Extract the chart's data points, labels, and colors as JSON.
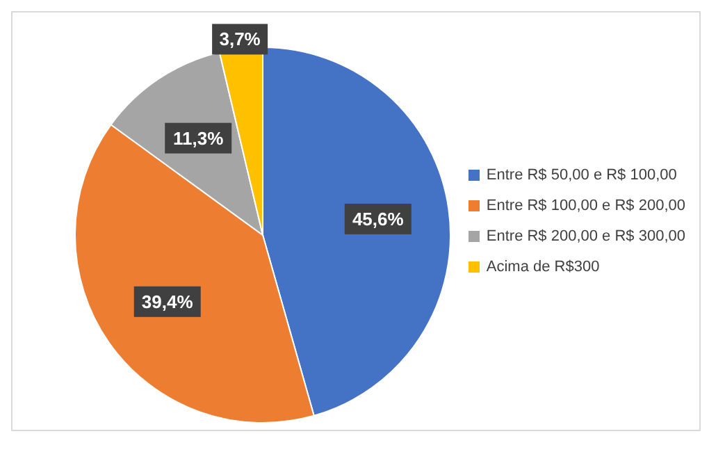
{
  "chart_data": {
    "type": "pie",
    "categories": [
      "Entre R$ 50,00 e R$ 100,00",
      "Entre R$ 100,00 e R$ 200,00",
      "Entre R$ 200,00 e R$ 300,00",
      "Acima de R$300"
    ],
    "values": [
      45.6,
      39.4,
      11.3,
      3.7
    ],
    "colors": [
      "#4472c4",
      "#ed7d31",
      "#a5a5a5",
      "#ffc000"
    ],
    "value_labels": [
      "45,6%",
      "39,4%",
      "11,3%",
      "3,7%"
    ],
    "legend": "right"
  }
}
